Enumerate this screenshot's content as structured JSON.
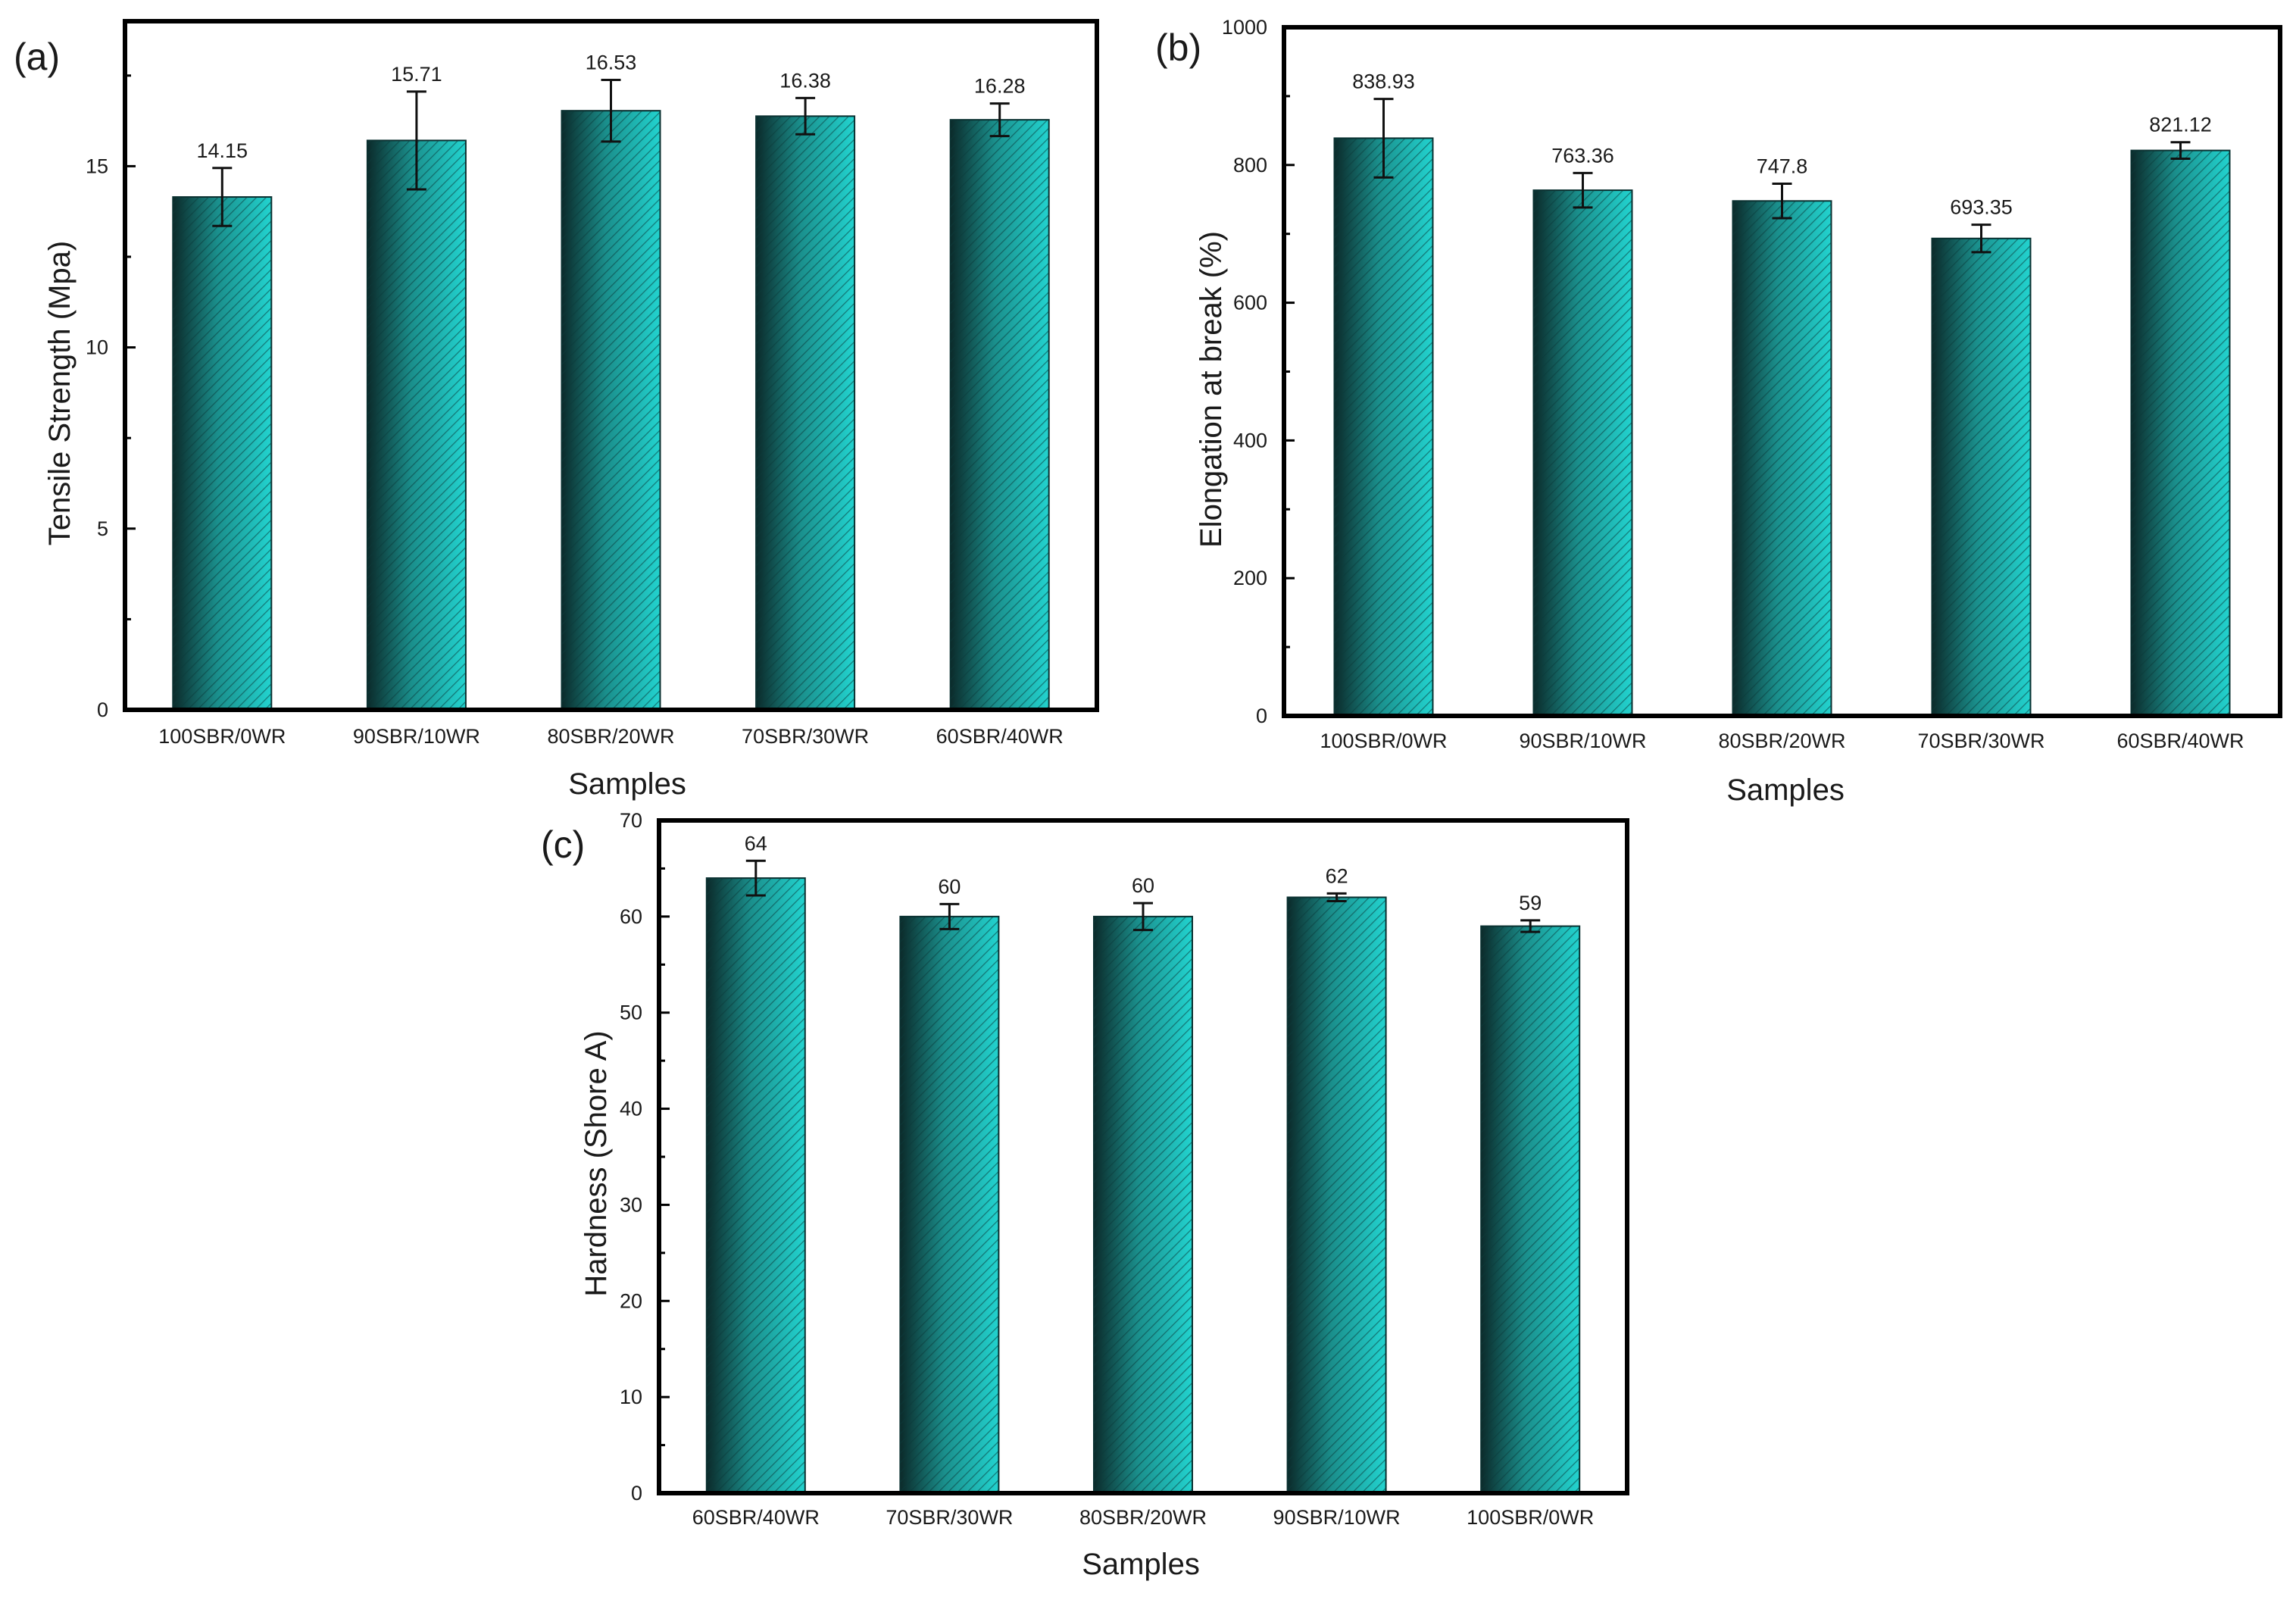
{
  "chart_data": [
    {
      "panel_label": "(a)",
      "type": "bar",
      "categories": [
        "100SBR/0WR",
        "90SBR/10WR",
        "80SBR/20WR",
        "70SBR/30WR",
        "60SBR/40WR"
      ],
      "values": [
        14.15,
        15.71,
        16.53,
        16.38,
        16.28
      ],
      "value_labels": [
        "14.15",
        "15.71",
        "16.53",
        "16.38",
        "16.28"
      ],
      "errors": [
        0.8,
        1.35,
        0.85,
        0.5,
        0.45
      ],
      "xlabel": "Samples",
      "ylabel": "Tensile Strength (Mpa)",
      "ylim": [
        0,
        19
      ],
      "yticks": [
        0,
        5,
        10,
        15
      ],
      "ytick_labels": [
        "0",
        "5",
        "10",
        "15"
      ],
      "minor_step": 2.5
    },
    {
      "panel_label": "(b)",
      "type": "bar",
      "categories": [
        "100SBR/0WR",
        "90SBR/10WR",
        "80SBR/20WR",
        "70SBR/30WR",
        "60SBR/40WR"
      ],
      "values": [
        838.93,
        763.36,
        747.8,
        693.35,
        821.12
      ],
      "value_labels": [
        "838.93",
        "763.36",
        "747.8",
        "693.35",
        "821.12"
      ],
      "errors": [
        57,
        25,
        25,
        20,
        12
      ],
      "xlabel": "Samples",
      "ylabel": "Elongation at break (%)",
      "ylim": [
        0,
        1000
      ],
      "yticks": [
        0,
        200,
        400,
        600,
        800,
        1000
      ],
      "ytick_labels": [
        "0",
        "200",
        "400",
        "600",
        "800",
        "1000"
      ],
      "minor_step": 100
    },
    {
      "panel_label": "(c)",
      "type": "bar",
      "categories": [
        "60SBR/40WR",
        "70SBR/30WR",
        "80SBR/20WR",
        "90SBR/10WR",
        "100SBR/0WR"
      ],
      "values": [
        64,
        60,
        60,
        62,
        59
      ],
      "value_labels": [
        "64",
        "60",
        "60",
        "62",
        "59"
      ],
      "errors": [
        1.8,
        1.3,
        1.4,
        0.4,
        0.6
      ],
      "xlabel": "Samples",
      "ylabel": "Hardness (Shore A)",
      "ylim": [
        0,
        70
      ],
      "yticks": [
        0,
        10,
        20,
        30,
        40,
        50,
        60,
        70
      ],
      "ytick_labels": [
        "0",
        "10",
        "20",
        "30",
        "40",
        "50",
        "60",
        "70"
      ],
      "minor_step": 5
    }
  ],
  "colors": {
    "bar_dark": "#0b2a2a",
    "bar_mid": "#1a8f8c",
    "bar_light": "#22d3cf",
    "hatch": "#0a3b3b",
    "axis": "#000000"
  }
}
